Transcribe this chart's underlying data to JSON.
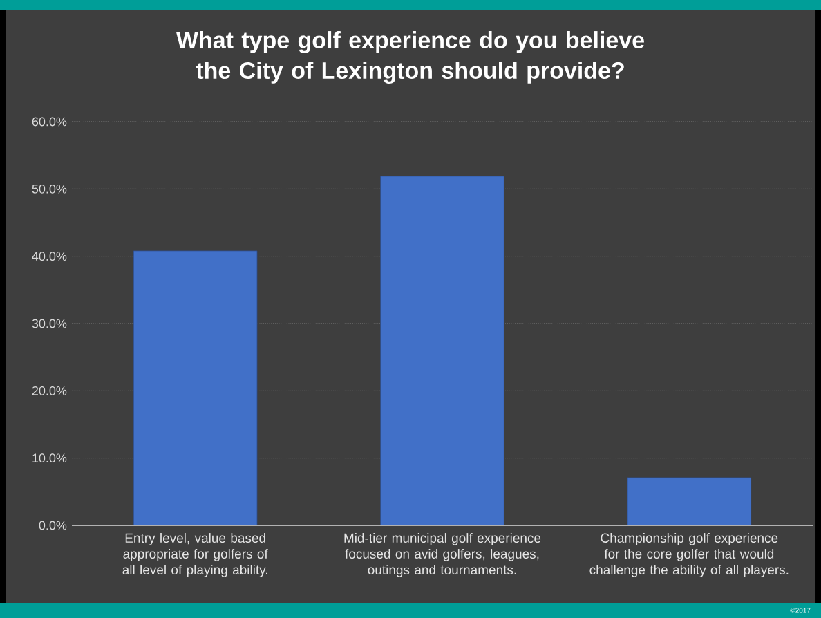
{
  "chart_data": {
    "type": "bar",
    "title": "What type golf experience do you believe the City of Lexington should provide?",
    "categories": [
      "Entry level, value based appropriate for golfers of all level of playing ability.",
      "Mid-tier municipal golf experience focused on avid golfers, leagues, outings and tournaments.",
      "Championship golf experience for the core golfer that would challenge the ability of all players."
    ],
    "values": [
      40.8,
      51.9,
      7.1
    ],
    "color": "#4170c8",
    "ylim": [
      0,
      60
    ],
    "yticks": [
      {
        "value": 0,
        "label": "0.0%"
      },
      {
        "value": 10,
        "label": "10.0%"
      },
      {
        "value": 20,
        "label": "20.0%"
      },
      {
        "value": 30,
        "label": "30.0%"
      },
      {
        "value": 40,
        "label": "40.0%"
      },
      {
        "value": 50,
        "label": "50.0%"
      },
      {
        "value": 60,
        "label": "60.0%"
      }
    ],
    "grid": "y",
    "annotations": [
      "©2017"
    ]
  }
}
